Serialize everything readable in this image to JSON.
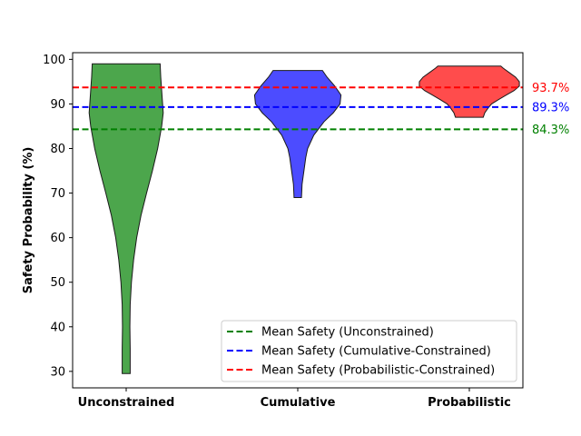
{
  "chart_data": {
    "type": "violin",
    "ylabel": "Safety Probability (%)",
    "ylim": [
      26.3,
      101.5
    ],
    "yticks": [
      30,
      40,
      50,
      60,
      70,
      80,
      90,
      100
    ],
    "categories": [
      "Unconstrained",
      "Cumulative",
      "Probabilistic"
    ],
    "series": [
      {
        "category": "Unconstrained",
        "color": "#008000",
        "min": 29.5,
        "max": 99.0,
        "mean": 84.3,
        "profile": [
          [
            29.5,
            0.13
          ],
          [
            35,
            0.13
          ],
          [
            40,
            0.12
          ],
          [
            45,
            0.13
          ],
          [
            50,
            0.17
          ],
          [
            55,
            0.24
          ],
          [
            60,
            0.34
          ],
          [
            65,
            0.48
          ],
          [
            70,
            0.66
          ],
          [
            75,
            0.85
          ],
          [
            80,
            1.02
          ],
          [
            85,
            1.15
          ],
          [
            88,
            1.2
          ],
          [
            90,
            1.18
          ],
          [
            93,
            1.15
          ],
          [
            96,
            1.12
          ],
          [
            99,
            1.1
          ]
        ]
      },
      {
        "category": "Cumulative",
        "color": "#0000ff",
        "min": 69.0,
        "max": 97.5,
        "mean": 89.3,
        "profile": [
          [
            69,
            0.12
          ],
          [
            72,
            0.14
          ],
          [
            74,
            0.18
          ],
          [
            76,
            0.22
          ],
          [
            78,
            0.26
          ],
          [
            80,
            0.32
          ],
          [
            83,
            0.52
          ],
          [
            86,
            0.85
          ],
          [
            88,
            1.15
          ],
          [
            90,
            1.37
          ],
          [
            92,
            1.4
          ],
          [
            94,
            1.2
          ],
          [
            96,
            0.95
          ],
          [
            97.5,
            0.8
          ]
        ]
      },
      {
        "category": "Probabilistic",
        "color": "#ff0000",
        "min": 87.0,
        "max": 98.5,
        "mean": 93.7,
        "profile": [
          [
            87,
            0.45
          ],
          [
            88,
            0.5
          ],
          [
            89,
            0.6
          ],
          [
            90,
            0.72
          ],
          [
            91,
            0.95
          ],
          [
            92,
            1.2
          ],
          [
            93,
            1.45
          ],
          [
            94,
            1.62
          ],
          [
            95,
            1.62
          ],
          [
            96,
            1.5
          ],
          [
            97,
            1.3
          ],
          [
            98,
            1.1
          ],
          [
            98.5,
            1.02
          ]
        ]
      }
    ],
    "mean_lines": [
      {
        "label": "84.3%",
        "value": 84.3,
        "color": "#008000",
        "legend": "Mean Safety (Unconstrained)"
      },
      {
        "label": "89.3%",
        "value": 89.3,
        "color": "#0000ff",
        "legend": "Mean Safety (Cumulative-Constrained)"
      },
      {
        "label": "93.7%",
        "value": 93.7,
        "color": "#ff0000",
        "legend": "Mean Safety (Probabilistic-Constrained)"
      }
    ],
    "legend_position": "lower-right",
    "grid": false
  }
}
